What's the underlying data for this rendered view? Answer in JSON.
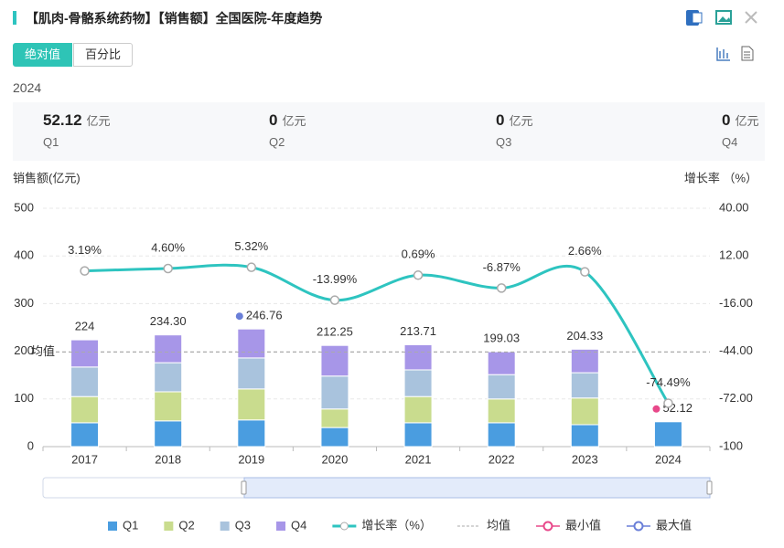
{
  "header": {
    "title": "【肌肉-骨骼系统药物】【销售额】全国医院-年度趋势",
    "tabs": [
      "绝对值",
      "百分比"
    ],
    "year": "2024"
  },
  "cards": [
    {
      "value": 52.12,
      "unit": "亿元",
      "label": "Q1"
    },
    {
      "value": 0,
      "unit": "亿元",
      "label": "Q2"
    },
    {
      "value": 0,
      "unit": "亿元",
      "label": "Q3"
    },
    {
      "value": 0,
      "unit": "亿元",
      "label": "Q4"
    }
  ],
  "chart_data": {
    "type": "bar",
    "stacked": true,
    "y_label": "销售额(亿元)",
    "y2_label": "增长率 （%）",
    "categories": [
      "2017",
      "2018",
      "2019",
      "2020",
      "2021",
      "2022",
      "2023",
      "2024"
    ],
    "series": [
      {
        "name": "Q1",
        "color": "#4a9de0",
        "values": [
          50,
          54,
          56,
          40,
          50,
          50,
          46,
          52.12
        ]
      },
      {
        "name": "Q2",
        "color": "#c9dc8e",
        "values": [
          55,
          61,
          65,
          39,
          55,
          50,
          56,
          0
        ]
      },
      {
        "name": "Q3",
        "color": "#a9c3dd",
        "values": [
          62,
          61,
          65,
          69,
          56,
          51,
          53,
          0
        ]
      },
      {
        "name": "Q4",
        "color": "#a796e8",
        "values": [
          57,
          58.3,
          60.76,
          64.25,
          52.71,
          48.03,
          49.33,
          0
        ]
      },
      {
        "name": "增长率（%）",
        "type": "line",
        "axis": "y2",
        "color": "#2ec4c0",
        "values": [
          3.19,
          4.6,
          5.32,
          -13.99,
          0.69,
          -6.87,
          2.66,
          -74.49
        ],
        "value_labels": [
          "3.19%",
          "4.60%",
          "5.32%",
          "-13.99%",
          "0.69%",
          "-6.87%",
          "2.66%",
          "-74.49%"
        ]
      }
    ],
    "totals": {
      "values": [
        224,
        234.3,
        246.76,
        212.25,
        213.71,
        199.03,
        204.33,
        52.12
      ],
      "value_labels": [
        "224",
        "234.30",
        "246.76",
        "212.25",
        "213.71",
        "199.03",
        "204.33",
        "52.12"
      ]
    },
    "average": {
      "name": "均值",
      "value": 198.3,
      "color": "#aaaaaa"
    },
    "min": {
      "name": "最小值",
      "color": "#e8488a"
    },
    "max": {
      "name": "最大值",
      "color": "#6a7fd8"
    },
    "ylim": [
      0,
      500
    ],
    "yticks": [
      0,
      100,
      200,
      300,
      400,
      500
    ],
    "y2lim": [
      -100,
      40
    ],
    "y2ticks": [
      -100,
      {
        "value": -72,
        "label": "-72.00"
      },
      {
        "value": -44,
        "label": "-44.00"
      },
      {
        "value": -16,
        "label": "-16.00"
      },
      {
        "value": 12,
        "label": "12.00"
      },
      {
        "value": 40,
        "label": "40.00"
      }
    ],
    "grid": true
  }
}
